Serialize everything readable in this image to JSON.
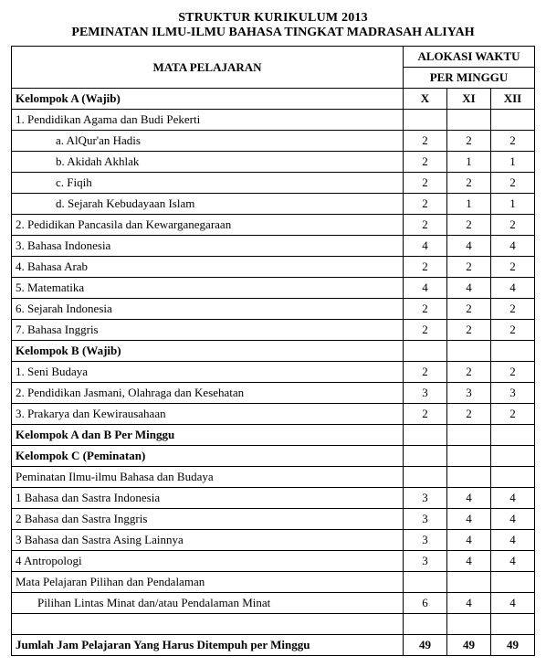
{
  "title_line1": "STRUKTUR KURIKULUM 2013",
  "title_line2": "PEMINATAN ILMU-ILMU BAHASA TINGKAT MADRASAH ALIYAH",
  "header": {
    "subject": "MATA PELAJARAN",
    "alloc": "ALOKASI WAKTU",
    "perweek": "PER MINGGU",
    "groupA": "Kelompok A (Wajib)",
    "x": "X",
    "xi": "XI",
    "xii": "XII"
  },
  "rows": [
    {
      "type": "label",
      "text": "1.    Pendidikan Agama dan Budi Pekerti"
    },
    {
      "type": "sub",
      "text": "a.    AlQur'an Hadis",
      "x": "2",
      "xi": "2",
      "xii": "2"
    },
    {
      "type": "sub",
      "text": "b.    Akidah Akhlak",
      "x": "2",
      "xi": "1",
      "xii": "1"
    },
    {
      "type": "sub",
      "text": "c.    Fiqih",
      "x": "2",
      "xi": "2",
      "xii": "2"
    },
    {
      "type": "sub",
      "text": "d.    Sejarah Kebudayaan Islam",
      "x": "2",
      "xi": "1",
      "xii": "1"
    },
    {
      "type": "item",
      "text": "2.    Pedidikan Pancasila dan Kewarganegaraan",
      "x": "2",
      "xi": "2",
      "xii": "2"
    },
    {
      "type": "item",
      "text": "3.    Bahasa Indonesia",
      "x": "4",
      "xi": "4",
      "xii": "4"
    },
    {
      "type": "item",
      "text": "4.    Bahasa Arab",
      "x": "2",
      "xi": "2",
      "xii": "2"
    },
    {
      "type": "item",
      "text": "5.    Matematika",
      "x": "4",
      "xi": "4",
      "xii": "4"
    },
    {
      "type": "item",
      "text": "6.    Sejarah Indonesia",
      "x": "2",
      "xi": "2",
      "xii": "2"
    },
    {
      "type": "item",
      "text": "7.    Bahasa Inggris",
      "x": "2",
      "xi": "2",
      "xii": "2"
    },
    {
      "type": "group",
      "text": "Kelompok B (Wajib)"
    },
    {
      "type": "item",
      "text": "1.    Seni Budaya",
      "x": "2",
      "xi": "2",
      "xii": "2"
    },
    {
      "type": "item",
      "text": "2.    Pendidikan Jasmani, Olahraga dan Kesehatan",
      "x": "3",
      "xi": "3",
      "xii": "3"
    },
    {
      "type": "item",
      "text": "3.    Prakarya dan Kewirausahaan",
      "x": "2",
      "xi": "2",
      "xii": "2"
    },
    {
      "type": "group",
      "text": "Kelompok A dan B Per Minggu"
    },
    {
      "type": "group",
      "text": "Kelompok C (Peminatan)"
    },
    {
      "type": "label",
      "text": "Peminatan Ilmu-ilmu Bahasa dan Budaya"
    },
    {
      "type": "item",
      "text": "1    Bahasa dan Sastra Indonesia",
      "x": "3",
      "xi": "4",
      "xii": "4"
    },
    {
      "type": "item",
      "text": "2    Bahasa dan Sastra Inggris",
      "x": "3",
      "xi": "4",
      "xii": "4"
    },
    {
      "type": "item",
      "text": "3    Bahasa dan Sastra Asing Lainnya",
      "x": "3",
      "xi": "4",
      "xii": "4"
    },
    {
      "type": "item",
      "text": "4    Antropologi",
      "x": "3",
      "xi": "4",
      "xii": "4"
    },
    {
      "type": "label",
      "text": "Mata Pelajaran Pilihan dan Pendalaman"
    },
    {
      "type": "sub2",
      "text": "Pilihan Lintas Minat dan/atau Pendalaman Minat",
      "x": "6",
      "xi": "4",
      "xii": "4"
    },
    {
      "type": "spacer"
    },
    {
      "type": "total",
      "text": "Jumlah Jam Pelajaran Yang Harus Ditempuh per Minggu",
      "x": "49",
      "xi": "49",
      "xii": "49"
    }
  ]
}
